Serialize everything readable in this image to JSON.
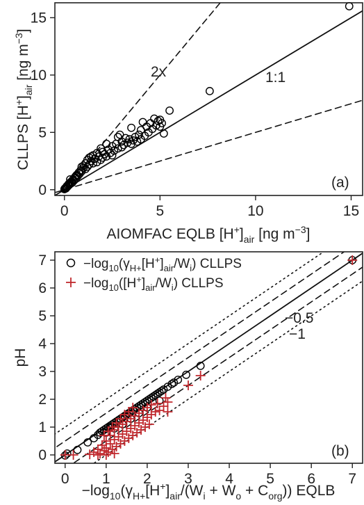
{
  "chart_data": [
    {
      "type": "scatter",
      "panel_label": "(a)",
      "xlim": [
        -0.5,
        15.6
      ],
      "ylim": [
        -0.5,
        16.3
      ],
      "xticks": [
        0,
        5,
        10,
        15
      ],
      "yticks": [
        0,
        5,
        10,
        15
      ],
      "ylabel": "CLLPS [H⁺]air [ng m⁻³]",
      "ylabel_parts": {
        "main": "CLLPS [H",
        "sup": "+",
        "close": "]",
        "sub": "air",
        "unit": " [ng m",
        "unit_sup": "−3",
        "end": "]"
      },
      "xlabel": "AIOMFAC EQLB [H⁺]air [ng m⁻³]",
      "xlabel_parts": {
        "main": "AIOMFAC EQLB [H",
        "sup": "+",
        "close": "]",
        "sub": "air",
        "unit": " [ng m",
        "unit_sup": "−3",
        "end": "]"
      },
      "lines": [
        {
          "label": "1:1",
          "slope": 1,
          "style": "solid"
        },
        {
          "label": "2x",
          "slope": 2,
          "style": "dashed"
        },
        {
          "label": "",
          "slope": 0.5,
          "style": "dashed"
        }
      ],
      "series": [
        {
          "marker": "circle",
          "color": "#000000",
          "points": [
            [
              0.0,
              0.05
            ],
            [
              0.02,
              0.1
            ],
            [
              0.05,
              0.15
            ],
            [
              0.08,
              0.12
            ],
            [
              0.1,
              0.2
            ],
            [
              0.12,
              0.3
            ],
            [
              0.15,
              0.25
            ],
            [
              0.18,
              0.4
            ],
            [
              0.2,
              0.35
            ],
            [
              0.22,
              0.5
            ],
            [
              0.25,
              0.45
            ],
            [
              0.28,
              0.6
            ],
            [
              0.3,
              0.5
            ],
            [
              0.35,
              0.7
            ],
            [
              0.4,
              0.6
            ],
            [
              0.45,
              0.9
            ],
            [
              0.5,
              0.8
            ],
            [
              0.55,
              1.1
            ],
            [
              0.6,
              1.0
            ],
            [
              0.65,
              1.3
            ],
            [
              0.7,
              1.2
            ],
            [
              0.75,
              1.5
            ],
            [
              0.8,
              1.4
            ],
            [
              0.85,
              1.7
            ],
            [
              0.9,
              1.6
            ],
            [
              1.0,
              1.9
            ],
            [
              1.0,
              2.1
            ],
            [
              1.1,
              1.8
            ],
            [
              1.1,
              2.3
            ],
            [
              1.2,
              2.0
            ],
            [
              1.2,
              2.6
            ],
            [
              1.3,
              2.2
            ],
            [
              1.3,
              2.8
            ],
            [
              1.4,
              2.5
            ],
            [
              1.5,
              2.3
            ],
            [
              1.5,
              3.0
            ],
            [
              1.6,
              2.7
            ],
            [
              1.7,
              2.4
            ],
            [
              1.7,
              3.2
            ],
            [
              1.8,
              2.9
            ],
            [
              1.9,
              2.6
            ],
            [
              2.0,
              3.3
            ],
            [
              2.0,
              2.8
            ],
            [
              2.1,
              3.1
            ],
            [
              2.2,
              2.9
            ],
            [
              2.3,
              3.5
            ],
            [
              2.4,
              3.2
            ],
            [
              2.5,
              3.0
            ],
            [
              2.5,
              3.8
            ],
            [
              2.6,
              3.4
            ],
            [
              2.7,
              4.0
            ],
            [
              2.8,
              3.6
            ],
            [
              2.8,
              4.6
            ],
            [
              2.9,
              4.8
            ],
            [
              3.0,
              3.7
            ],
            [
              3.0,
              4.2
            ],
            [
              3.1,
              3.9
            ],
            [
              3.2,
              4.5
            ],
            [
              3.3,
              4.1
            ],
            [
              3.4,
              4.4
            ],
            [
              3.5,
              4.0
            ],
            [
              3.6,
              4.3
            ],
            [
              3.7,
              4.6
            ],
            [
              3.8,
              4.2
            ],
            [
              3.9,
              4.8
            ],
            [
              4.0,
              4.4
            ],
            [
              4.0,
              5.2
            ],
            [
              4.2,
              4.7
            ],
            [
              4.3,
              5.5
            ],
            [
              4.4,
              5.0
            ],
            [
              4.5,
              5.8
            ],
            [
              4.6,
              5.3
            ],
            [
              4.7,
              6.2
            ],
            [
              4.8,
              5.6
            ],
            [
              4.9,
              6.0
            ],
            [
              5.0,
              5.5
            ],
            [
              5.0,
              6.1
            ],
            [
              5.1,
              5.8
            ],
            [
              5.2,
              4.9
            ],
            [
              5.5,
              6.9
            ],
            [
              7.6,
              8.6
            ],
            [
              14.9,
              16.0
            ],
            [
              0.3,
              0.9
            ],
            [
              0.6,
              1.2
            ],
            [
              0.9,
              2.0
            ],
            [
              1.4,
              2.9
            ],
            [
              1.9,
              3.6
            ],
            [
              2.2,
              4.0
            ],
            [
              3.5,
              5.4
            ],
            [
              4.1,
              5.9
            ]
          ]
        }
      ]
    },
    {
      "type": "scatter",
      "panel_label": "(b)",
      "xlim": [
        -0.25,
        7.25
      ],
      "ylim": [
        -0.3,
        7.3
      ],
      "xticks": [
        0,
        1,
        2,
        3,
        4,
        5,
        6,
        7
      ],
      "yticks": [
        0,
        1,
        2,
        3,
        4,
        5,
        6,
        7
      ],
      "ylabel": "pH",
      "xlabel": "−log10(γH+[H⁺]air/(Wi + Wo + Corg)) EQLB",
      "xlabel_parts": {
        "pre": "−log",
        "sub10": "10",
        "open": "(γ",
        "gsub": "H+",
        "h": "[H",
        "hsup": "+",
        "hclose": "]",
        "hsub": "air",
        "div": "/(W",
        "wi": "i",
        "plus1": " + W",
        "wo": "o",
        "plus2": " + C",
        "corg": "org",
        "end": ")) EQLB"
      },
      "lines": [
        {
          "label": "",
          "offset": 0,
          "style": "solid"
        },
        {
          "label": "",
          "offset": 0.5,
          "style": "dashed"
        },
        {
          "label": "",
          "offset": 1,
          "style": "dotted"
        },
        {
          "label": "−0.5",
          "offset": -0.5,
          "style": "dashed"
        },
        {
          "label": "−1",
          "offset": -1,
          "style": "dotted"
        }
      ],
      "legend": [
        {
          "marker": "circle",
          "color": "#000000",
          "parts": {
            "pre": "−log",
            "sub10": "10",
            "open": "(γ",
            "gsub": "H+",
            "h": "[H",
            "hsup": "+",
            "hclose": "]",
            "hsub": "air",
            "div": "/W",
            "wi": "i",
            "end": ") CLLPS"
          }
        },
        {
          "marker": "plus",
          "color": "#c0282d",
          "parts": {
            "pre": "−log",
            "sub10": "10",
            "open": "(",
            "gsub": "",
            "h": "[H",
            "hsup": "+",
            "hclose": "]",
            "hsub": "air",
            "div": "/W",
            "wi": "i",
            "end": ") CLLPS"
          }
        }
      ],
      "series": [
        {
          "marker": "circle",
          "color": "#000000",
          "points": [
            [
              0.0,
              -0.02
            ],
            [
              0.05,
              0.05
            ],
            [
              0.3,
              0.18
            ],
            [
              0.55,
              0.45
            ],
            [
              0.7,
              0.6
            ],
            [
              0.8,
              0.72
            ],
            [
              0.85,
              0.8
            ],
            [
              0.9,
              0.85
            ],
            [
              0.95,
              0.9
            ],
            [
              1.0,
              0.95
            ],
            [
              1.05,
              1.0
            ],
            [
              1.1,
              1.05
            ],
            [
              1.15,
              1.1
            ],
            [
              1.2,
              1.15
            ],
            [
              1.25,
              1.2
            ],
            [
              1.3,
              1.25
            ],
            [
              1.35,
              1.3
            ],
            [
              1.4,
              1.35
            ],
            [
              1.45,
              1.4
            ],
            [
              1.5,
              1.45
            ],
            [
              1.55,
              1.5
            ],
            [
              1.6,
              1.55
            ],
            [
              1.65,
              1.6
            ],
            [
              1.7,
              1.65
            ],
            [
              1.75,
              1.7
            ],
            [
              1.8,
              1.75
            ],
            [
              1.85,
              1.8
            ],
            [
              1.9,
              1.85
            ],
            [
              1.95,
              1.9
            ],
            [
              2.0,
              1.95
            ],
            [
              2.05,
              2.0
            ],
            [
              2.1,
              2.05
            ],
            [
              2.15,
              2.1
            ],
            [
              2.2,
              2.15
            ],
            [
              2.25,
              2.2
            ],
            [
              2.3,
              2.25
            ],
            [
              2.35,
              2.3
            ],
            [
              2.4,
              2.35
            ],
            [
              2.5,
              2.45
            ],
            [
              2.6,
              2.55
            ],
            [
              2.65,
              2.6
            ],
            [
              2.75,
              2.7
            ],
            [
              2.95,
              2.88
            ],
            [
              3.3,
              3.2
            ],
            [
              7.0,
              7.0
            ],
            [
              1.0,
              0.8
            ],
            [
              1.2,
              0.95
            ],
            [
              1.4,
              1.1
            ],
            [
              1.6,
              1.3
            ],
            [
              1.8,
              1.5
            ],
            [
              2.0,
              1.7
            ],
            [
              2.3,
              1.95
            ],
            [
              1.1,
              1.0
            ]
          ]
        },
        {
          "marker": "plus",
          "color": "#c0282d",
          "points": [
            [
              0.0,
              0.0
            ],
            [
              0.2,
              0.0
            ],
            [
              0.6,
              0.02
            ],
            [
              0.7,
              0.1
            ],
            [
              0.8,
              0.2
            ],
            [
              0.85,
              0.05
            ],
            [
              0.9,
              0.35
            ],
            [
              0.95,
              0.15
            ],
            [
              1.0,
              0.5
            ],
            [
              1.0,
              0.25
            ],
            [
              1.05,
              0.1
            ],
            [
              1.1,
              0.7
            ],
            [
              1.1,
              0.4
            ],
            [
              1.15,
              0.2
            ],
            [
              1.2,
              0.9
            ],
            [
              1.2,
              0.55
            ],
            [
              1.25,
              0.3
            ],
            [
              1.3,
              1.0
            ],
            [
              1.3,
              0.65
            ],
            [
              1.35,
              0.4
            ],
            [
              1.4,
              1.1
            ],
            [
              1.4,
              0.75
            ],
            [
              1.45,
              0.5
            ],
            [
              1.5,
              1.2
            ],
            [
              1.5,
              0.85
            ],
            [
              1.55,
              0.6
            ],
            [
              1.6,
              1.3
            ],
            [
              1.6,
              0.95
            ],
            [
              1.65,
              0.7
            ],
            [
              1.7,
              1.4
            ],
            [
              1.7,
              1.05
            ],
            [
              1.75,
              0.8
            ],
            [
              1.8,
              1.5
            ],
            [
              1.8,
              1.15
            ],
            [
              1.85,
              0.9
            ],
            [
              1.9,
              1.6
            ],
            [
              1.9,
              1.25
            ],
            [
              1.95,
              1.0
            ],
            [
              2.0,
              1.7
            ],
            [
              2.0,
              1.35
            ],
            [
              2.05,
              1.1
            ],
            [
              2.1,
              1.8
            ],
            [
              2.1,
              1.45
            ],
            [
              2.2,
              1.55
            ],
            [
              2.25,
              1.85
            ],
            [
              2.3,
              1.6
            ],
            [
              2.4,
              1.75
            ],
            [
              2.45,
              2.05
            ],
            [
              2.5,
              1.9
            ],
            [
              2.5,
              1.55
            ],
            [
              3.0,
              2.5
            ],
            [
              3.3,
              2.85
            ],
            [
              7.0,
              7.0
            ],
            [
              0.95,
              0.7
            ],
            [
              1.05,
              0.85
            ],
            [
              1.15,
              1.0
            ],
            [
              1.25,
              1.15
            ],
            [
              1.35,
              1.3
            ],
            [
              1.45,
              1.45
            ],
            [
              1.55,
              1.55
            ],
            [
              1.65,
              1.7
            ],
            [
              0.8,
              0.0
            ],
            [
              1.0,
              0.0
            ],
            [
              1.2,
              0.05
            ]
          ]
        }
      ]
    }
  ]
}
